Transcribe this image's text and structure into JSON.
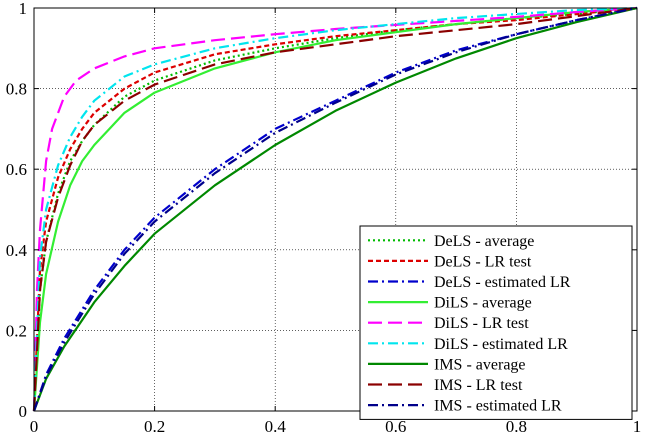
{
  "chart_data": {
    "type": "line",
    "title": "",
    "xlabel": "",
    "ylabel": "",
    "xlim": [
      0,
      1
    ],
    "ylim": [
      0,
      1
    ],
    "xticks": [
      "0",
      "0.2",
      "0.4",
      "0.6",
      "0.8",
      "1"
    ],
    "yticks": [
      "0",
      "0.2",
      "0.4",
      "0.6",
      "0.8",
      "1"
    ],
    "grid": true,
    "legend_position": "bottom-right",
    "series": [
      {
        "name": "DeLS - average",
        "color": "#00bb00",
        "dash": "dotted",
        "x": [
          0,
          0.01,
          0.02,
          0.04,
          0.06,
          0.08,
          0.1,
          0.15,
          0.2,
          0.3,
          0.4,
          0.5,
          0.6,
          0.7,
          0.8,
          0.9,
          1
        ],
        "y": [
          0,
          0.3,
          0.42,
          0.54,
          0.62,
          0.67,
          0.71,
          0.78,
          0.82,
          0.87,
          0.9,
          0.925,
          0.945,
          0.96,
          0.975,
          0.985,
          1
        ]
      },
      {
        "name": "DeLS - LR test",
        "color": "#dd0000",
        "dash": "short-dash",
        "x": [
          0,
          0.01,
          0.02,
          0.04,
          0.06,
          0.08,
          0.1,
          0.15,
          0.2,
          0.3,
          0.4,
          0.5,
          0.6,
          0.7,
          0.8,
          0.9,
          1
        ],
        "y": [
          0,
          0.35,
          0.47,
          0.58,
          0.65,
          0.7,
          0.74,
          0.8,
          0.84,
          0.885,
          0.91,
          0.93,
          0.945,
          0.96,
          0.97,
          0.985,
          1
        ]
      },
      {
        "name": "DeLS - estimated LR",
        "color": "#0000cc",
        "dash": "dash-dot",
        "x": [
          0,
          0.02,
          0.05,
          0.1,
          0.15,
          0.2,
          0.3,
          0.4,
          0.5,
          0.6,
          0.7,
          0.8,
          0.9,
          1
        ],
        "y": [
          0,
          0.09,
          0.18,
          0.3,
          0.4,
          0.48,
          0.6,
          0.7,
          0.77,
          0.84,
          0.895,
          0.935,
          0.97,
          1
        ]
      },
      {
        "name": "DiLS - average",
        "color": "#33ee33",
        "dash": "solid",
        "x": [
          0,
          0.01,
          0.02,
          0.04,
          0.06,
          0.08,
          0.1,
          0.15,
          0.2,
          0.3,
          0.4,
          0.5,
          0.6,
          0.7,
          0.8,
          0.9,
          1
        ],
        "y": [
          0,
          0.22,
          0.34,
          0.47,
          0.56,
          0.62,
          0.66,
          0.74,
          0.79,
          0.85,
          0.89,
          0.92,
          0.94,
          0.96,
          0.975,
          0.99,
          1
        ]
      },
      {
        "name": "DiLS - LR test",
        "color": "#ff00ff",
        "dash": "long-dash",
        "x": [
          0,
          0.005,
          0.01,
          0.02,
          0.03,
          0.05,
          0.07,
          0.1,
          0.15,
          0.2,
          0.3,
          0.4,
          0.5,
          0.6,
          0.7,
          0.8,
          0.9,
          1
        ],
        "y": [
          0,
          0.3,
          0.45,
          0.62,
          0.7,
          0.78,
          0.82,
          0.85,
          0.88,
          0.9,
          0.92,
          0.935,
          0.948,
          0.958,
          0.968,
          0.978,
          0.99,
          1
        ]
      },
      {
        "name": "DiLS - estimated LR",
        "color": "#00e5ee",
        "dash": "dash-dot",
        "x": [
          0,
          0.01,
          0.02,
          0.04,
          0.06,
          0.08,
          0.1,
          0.15,
          0.2,
          0.3,
          0.4,
          0.5,
          0.6,
          0.7,
          0.8,
          0.9,
          1
        ],
        "y": [
          0,
          0.38,
          0.5,
          0.61,
          0.68,
          0.73,
          0.77,
          0.83,
          0.86,
          0.9,
          0.925,
          0.945,
          0.96,
          0.975,
          0.985,
          0.995,
          1
        ]
      },
      {
        "name": "IMS - average",
        "color": "#008800",
        "dash": "solid",
        "x": [
          0,
          0.02,
          0.05,
          0.1,
          0.15,
          0.2,
          0.3,
          0.4,
          0.5,
          0.6,
          0.7,
          0.8,
          0.9,
          1
        ],
        "y": [
          0,
          0.08,
          0.16,
          0.27,
          0.36,
          0.44,
          0.56,
          0.66,
          0.745,
          0.815,
          0.875,
          0.925,
          0.965,
          1
        ]
      },
      {
        "name": "IMS - LR test",
        "color": "#8b0000",
        "dash": "long-dash",
        "x": [
          0,
          0.01,
          0.02,
          0.04,
          0.06,
          0.08,
          0.1,
          0.15,
          0.2,
          0.3,
          0.4,
          0.5,
          0.6,
          0.7,
          0.8,
          0.9,
          1
        ],
        "y": [
          0,
          0.3,
          0.42,
          0.53,
          0.61,
          0.67,
          0.71,
          0.77,
          0.81,
          0.86,
          0.89,
          0.91,
          0.93,
          0.945,
          0.96,
          0.98,
          1
        ]
      },
      {
        "name": "IMS - estimated LR",
        "color": "#00008b",
        "dash": "dash-dot",
        "x": [
          0,
          0.02,
          0.05,
          0.1,
          0.15,
          0.2,
          0.3,
          0.4,
          0.5,
          0.6,
          0.7,
          0.8,
          0.9,
          1
        ],
        "y": [
          0,
          0.085,
          0.17,
          0.29,
          0.39,
          0.47,
          0.59,
          0.69,
          0.765,
          0.835,
          0.89,
          0.935,
          0.97,
          1
        ]
      }
    ]
  }
}
